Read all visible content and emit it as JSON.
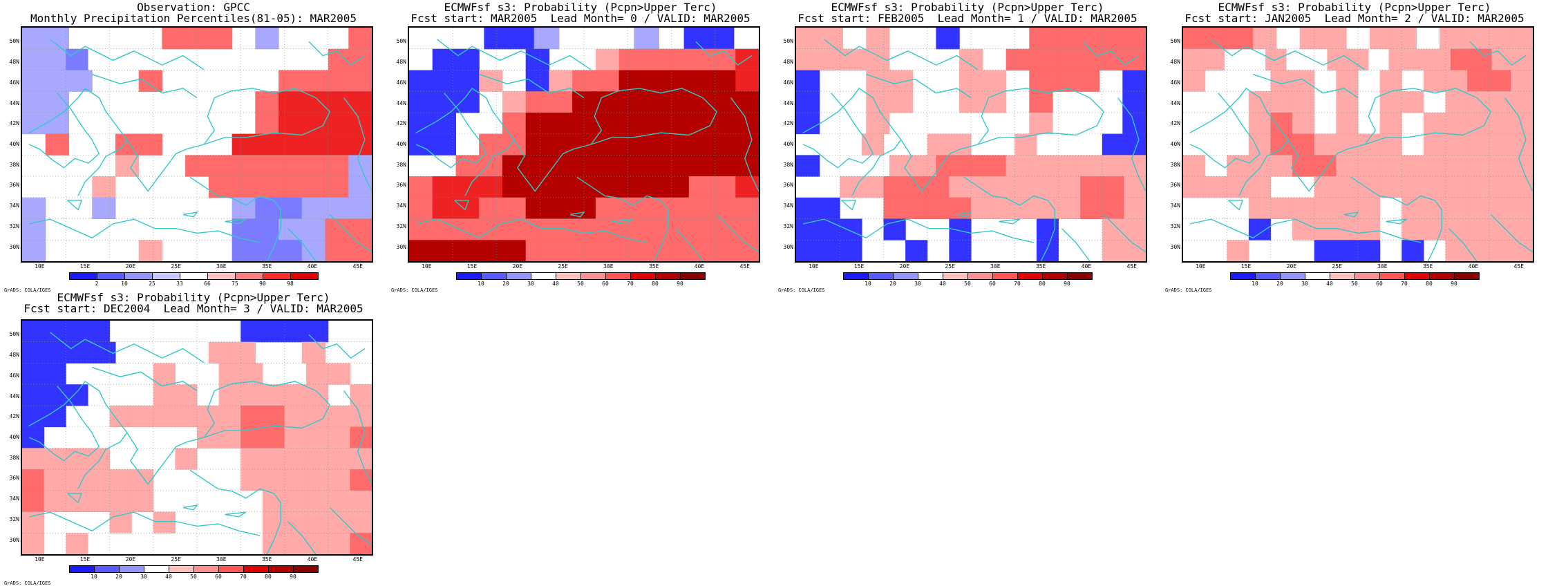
{
  "panels": [
    {
      "title1": "Observation: GPCC",
      "title2": "Monthly Precipitation Percentiles(81-05): MAR2005",
      "colorbar_labels": [
        "2",
        "10",
        "25",
        "33",
        "66",
        "75",
        "90",
        "98"
      ],
      "colorbar_colors": [
        "#1a1aff",
        "#5a5aff",
        "#9595ff",
        "#c8c8ff",
        "#ffffff",
        "#ffc0c0",
        "#ff7f7f",
        "#ff2a2a",
        "#e00000"
      ],
      "credit": "GrADS: COLA/IGES",
      "grid_rows": [
        "PP....RRR.P...R",
        "PPM...........RR",
        "PPP..R.....RRRR",
        "PP........RSSSS",
        "PP........RSSSS",
        ".R..RR...SSSSSS",
        "....L..RRRRRRRP",
        "...L....RRRRRRP",
        "P..P.....PMMPPP",
        "P........MMPPRR",
        "P....L...MMMPRR"
      ]
    },
    {
      "title1": "ECMWFsf s3: Probability (Pcpn>Upper Terc)",
      "title2": "Fcst start: MAR2005  Lead Month= 0 / VALID: MAR2005",
      "colorbar_labels": [
        "10",
        "20",
        "30",
        "40",
        "50",
        "60",
        "70",
        "80",
        "90"
      ],
      "colorbar_colors": [
        "#1a1aff",
        "#5a5aff",
        "#9595ff",
        "#ffffff",
        "#ffc0c0",
        "#ff9090",
        "#ff5555",
        "#e00000",
        "#b00000",
        "#8a0000"
      ],
      "credit": "GrADS: COLA/IGES",
      "grid_rows": [
        "...BBP...P.BB.",
        ".BB..B..LRRRRRS",
        "BBBL.BLRRDDDDDS",
        "BBB.LRRDDDDDDDD",
        "BB..RDDDDDDDDDD",
        "BB.RRDDDDDDDDDD",
        "..RRDDDDDDDDDDD",
        "RSSSDDDDDDDDRRS",
        "RSSRRDDDRRRRRRR",
        "RRRRRRRRRRRRRRR",
        "DDDDDRRRRRRRRRR"
      ]
    },
    {
      "title1": "ECMWFsf s3: Probability (Pcpn>Upper Terc)",
      "title2": "Fcst start: FEB2005  Lead Month= 1 / VALID: MAR2005",
      "colorbar_labels": [
        "10",
        "20",
        "30",
        "40",
        "50",
        "60",
        "70",
        "80",
        "90"
      ],
      "colorbar_colors": [
        "#1a1aff",
        "#5a5aff",
        "#9595ff",
        "#ffffff",
        "#ffc0c0",
        "#ff9090",
        "#ff5555",
        "#e00000",
        "#b00000",
        "#8a0000"
      ],
      "credit": "GrADS: COLA/IGES",
      "grid_rows": [
        "LL.L..B...RRRRR",
        "LLLL...L.RRRRRR",
        "B..LL..LL.RRR.B",
        "B..LL..LL.R...B",
        "B..L......L...B",
        "...L..LL..L...BB",
        "B...LLRRRLLLLLL",
        "..LLRRRLLLLLLRRL",
        "BB..RRRRLLLLLRRL",
        "BBB.B..B...B..LL",
        "BBB..B.B...B..LL"
      ]
    },
    {
      "title1": "ECMWFsf s3: Probability (Pcpn>Upper Terc)",
      "title2": "Fcst start: JAN2005  Lead Month= 2 / VALID: MAR2005",
      "colorbar_labels": [
        "10",
        "20",
        "30",
        "40",
        "50",
        "60",
        "70",
        "80",
        "90"
      ],
      "colorbar_colors": [
        "#1a1aff",
        "#5a5aff",
        "#9595ff",
        "#ffffff",
        "#ffc0c0",
        "#ff9090",
        "#ff5555",
        "#e00000",
        "#b00000",
        "#8a0000"
      ],
      "credit": "GrADS: COLA/IGES",
      "grid_rows": [
        "RRRL.LL.LL.LLLL",
        "LL..L..LL.LLLRRLL",
        "L...LL.L.L.LLRRL",
        "...LLL.L.LL.LLLL",
        "...LRL.L.L.LLLLL",
        "...LRRLLLL.LLLLL",
        "L.LLLRRLLLLLLLLL",
        "LLLL..LLLLLLLLLL",
        "...LLLLLL.LLLLLL",
        "...B.LLLL.LLLLLL",
        "..L...BBB.B.LLLL"
      ]
    },
    {
      "title1": "ECMWFsf s3: Probability (Pcpn>Upper Terc)",
      "title2": "Fcst start: DEC2004  Lead Month= 3 / VALID: MAR2005",
      "colorbar_labels": [
        "10",
        "20",
        "30",
        "40",
        "50",
        "60",
        "70",
        "80",
        "90"
      ],
      "colorbar_colors": [
        "#1a1aff",
        "#5a5aff",
        "#9595ff",
        "#ffffff",
        "#ffc0c0",
        "#ff9090",
        "#ff5555",
        "#e00000",
        "#b00000",
        "#8a0000"
      ],
      "credit": "GrADS: COLA/IGES",
      "grid_rows": [
        "BBBB......BBBB..",
        "BBBB....LL..L..",
        "BB....L..LL..LL.",
        "BBB...LL.LLLLL.L",
        "BB..LLLLLLRRLLLL",
        "B.......LLRRLLLR",
        "LLLL...L..LLLLLL",
        "RLLLLL....LLLLLR",
        "RLLLLL.....LLLLL",
        "L...L.L....LLLLL",
        "L.L........LLLLR"
      ]
    }
  ],
  "lat_labels": [
    "50N",
    "48N",
    "46N",
    "44N",
    "42N",
    "40N",
    "38N",
    "36N",
    "34N",
    "32N",
    "30N"
  ],
  "lon_labels": [
    "10E",
    "15E",
    "20E",
    "25E",
    "30E",
    "35E",
    "40E",
    "45E"
  ],
  "cell_colors": {
    "B": "#3333ff",
    "M": "#7b7bff",
    "P": "#a8a8ff",
    "L": "#ffa9a9",
    "R": "#ff6a6a",
    "S": "#ee2222",
    "D": "#b50000"
  },
  "coast_color": "#33c8c8"
}
